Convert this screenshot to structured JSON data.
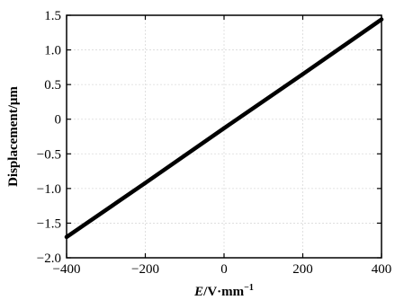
{
  "chart_data": {
    "type": "line",
    "title": "",
    "xlabel": "E/V·mm⁻¹",
    "xlabel_parts": {
      "var": "E",
      "unit": "/V·mm",
      "exp": "−1"
    },
    "ylabel": "Displacement/μm",
    "xlim": [
      -400,
      400
    ],
    "ylim": [
      -2.0,
      1.5
    ],
    "x_ticks": [
      -400,
      -200,
      0,
      200,
      400
    ],
    "x_tick_labels": [
      "−400",
      "−200",
      "0",
      "200",
      "400"
    ],
    "y_ticks": [
      1.5,
      1.0,
      0.5,
      0,
      -0.5,
      -1.0,
      -1.5,
      -2.0
    ],
    "y_tick_labels": [
      "1.5",
      "1.0",
      "0.5",
      "0",
      "−0.5",
      "−1.0",
      "−1.5",
      "−2.0"
    ],
    "grid": true,
    "series": [
      {
        "x": [
          -400,
          -200,
          0,
          200,
          400
        ],
        "y": [
          -1.7,
          -0.92,
          -0.13,
          0.65,
          1.44
        ],
        "color": "#000000"
      }
    ]
  }
}
